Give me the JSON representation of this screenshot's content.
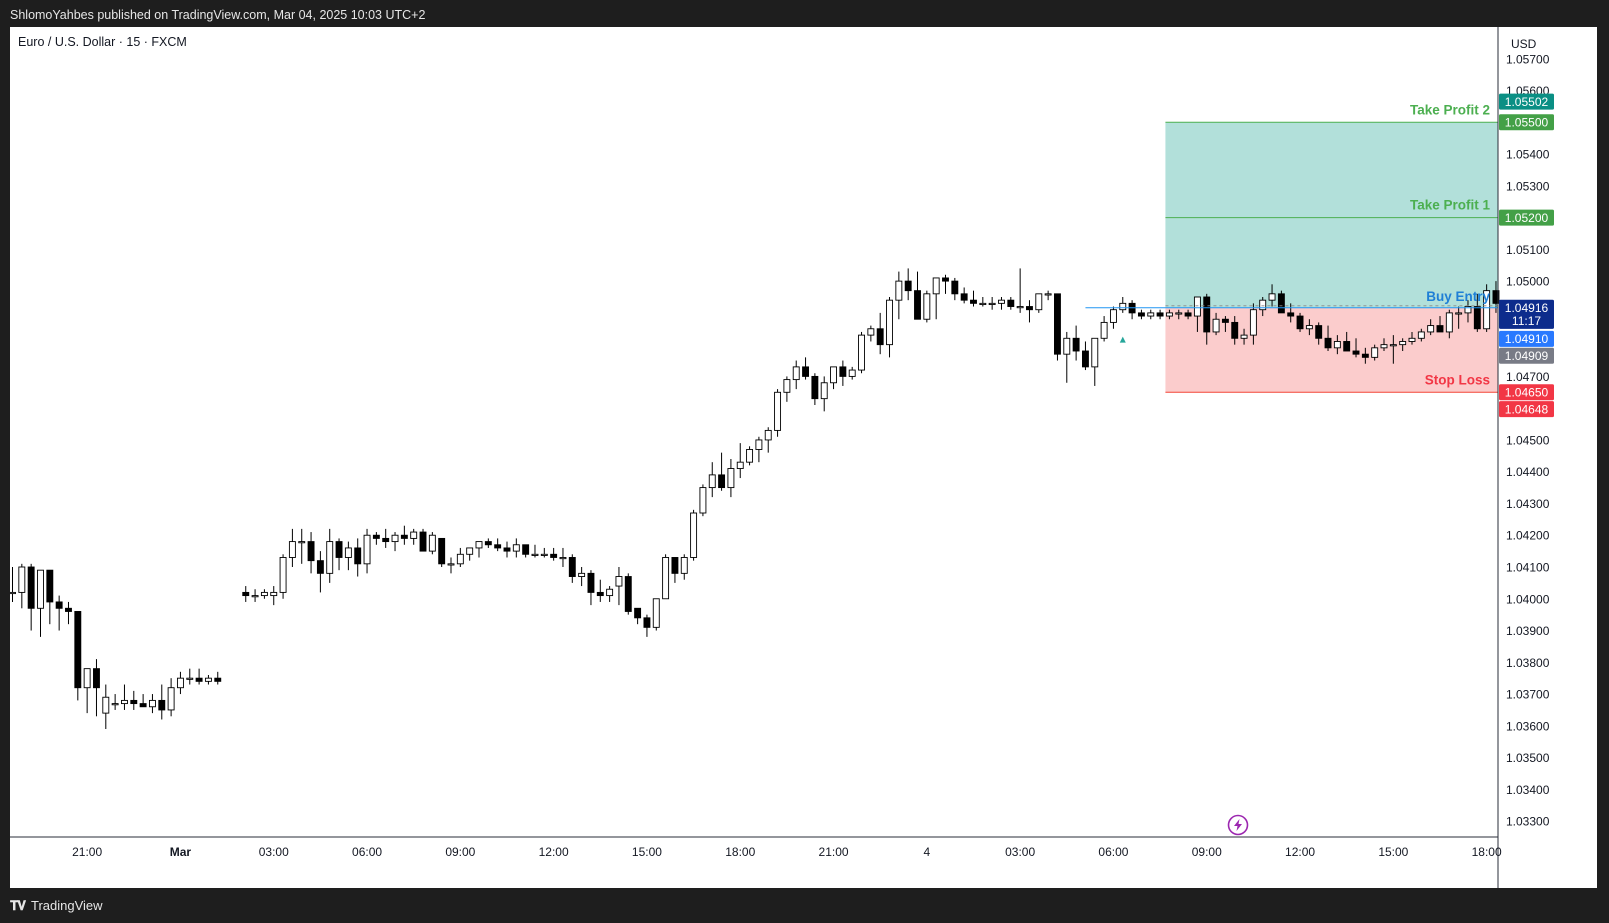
{
  "header": {
    "published_by": "ShlomoYahbes published on TradingView.com, Mar 04, 2025 10:03 UTC+2"
  },
  "footer": {
    "brand": "TradingView",
    "logo_icon": "tradingview-logo-icon"
  },
  "chart_data": {
    "type": "candlestick",
    "symbol_label": "Euro / U.S. Dollar · 15 · FXCM",
    "currency": "USD",
    "ylim": [
      1.0325,
      1.058
    ],
    "y_ticks": [
      "1.05700",
      "1.05600",
      "1.05400",
      "1.05300",
      "1.05100",
      "1.05000",
      "1.04700",
      "1.04500",
      "1.04400",
      "1.04300",
      "1.04200",
      "1.04100",
      "1.04000",
      "1.03900",
      "1.03800",
      "1.03700",
      "1.03600",
      "1.03500",
      "1.03400",
      "1.03300"
    ],
    "x_ticks": [
      {
        "label": "21:00",
        "bar": 8
      },
      {
        "label": "Mar",
        "bar": 18,
        "bold": true
      },
      {
        "label": "03:00",
        "bar": 28
      },
      {
        "label": "06:00",
        "bar": 38
      },
      {
        "label": "09:00",
        "bar": 48
      },
      {
        "label": "12:00",
        "bar": 58
      },
      {
        "label": "15:00",
        "bar": 68
      },
      {
        "label": "18:00",
        "bar": 78
      },
      {
        "label": "21:00",
        "bar": 88
      },
      {
        "label": "4",
        "bar": 98
      },
      {
        "label": "03:00",
        "bar": 108
      },
      {
        "label": "06:00",
        "bar": 118
      },
      {
        "label": "09:00",
        "bar": 128
      },
      {
        "label": "12:00",
        "bar": 138
      },
      {
        "label": "15:00",
        "bar": 148
      },
      {
        "label": "18:00",
        "bar": 158
      }
    ],
    "bar_gap": [
      16,
      18
    ],
    "candles": [
      [
        1.0402,
        1.041,
        1.0399,
        1.0402
      ],
      [
        1.0402,
        1.0411,
        1.0397,
        1.041
      ],
      [
        1.041,
        1.0411,
        1.039,
        1.0397
      ],
      [
        1.0397,
        1.0409,
        1.0388,
        1.0409
      ],
      [
        1.0409,
        1.0409,
        1.0392,
        1.0399
      ],
      [
        1.0399,
        1.0401,
        1.039,
        1.0397
      ],
      [
        1.0397,
        1.0399,
        1.0392,
        1.0396
      ],
      [
        1.0396,
        1.0396,
        1.0368,
        1.0372
      ],
      [
        1.0372,
        1.0377,
        1.0364,
        1.0378
      ],
      [
        1.0378,
        1.0381,
        1.0363,
        1.0372
      ],
      [
        1.0364,
        1.0373,
        1.0359,
        1.0369
      ],
      [
        1.0367,
        1.037,
        1.0365,
        1.0367
      ],
      [
        1.0367,
        1.0373,
        1.0365,
        1.0368
      ],
      [
        1.0368,
        1.0371,
        1.0365,
        1.0367
      ],
      [
        1.0367,
        1.037,
        1.0366,
        1.0366
      ],
      [
        1.0366,
        1.037,
        1.0364,
        1.0368
      ],
      [
        1.0368,
        1.0373,
        1.0362,
        1.0365
      ],
      [
        1.0365,
        1.0375,
        1.0363,
        1.0372
      ],
      [
        1.0372,
        1.0377,
        1.037,
        1.0375
      ],
      [
        1.0375,
        1.0378,
        1.0373,
        1.0375
      ],
      [
        1.0375,
        1.0378,
        1.0373,
        1.0374
      ],
      [
        1.0374,
        1.0376,
        1.0373,
        1.0375
      ],
      [
        1.0375,
        1.0377,
        1.0373,
        1.0374
      ],
      [
        1.0402,
        1.0404,
        1.0399,
        1.0401
      ],
      [
        1.0401,
        1.0403,
        1.0399,
        1.0401
      ],
      [
        1.0401,
        1.0403,
        1.04,
        1.0402
      ],
      [
        1.0401,
        1.0404,
        1.0398,
        1.0402
      ],
      [
        1.0402,
        1.0414,
        1.04,
        1.0413
      ],
      [
        1.0413,
        1.0422,
        1.041,
        1.0418
      ],
      [
        1.0418,
        1.0422,
        1.0411,
        1.0418
      ],
      [
        1.0418,
        1.0421,
        1.0408,
        1.0412
      ],
      [
        1.0412,
        1.0415,
        1.0402,
        1.0408
      ],
      [
        1.0408,
        1.0422,
        1.0405,
        1.0418
      ],
      [
        1.0418,
        1.0419,
        1.0409,
        1.0413
      ],
      [
        1.0413,
        1.0418,
        1.0409,
        1.0416
      ],
      [
        1.0416,
        1.0419,
        1.0407,
        1.0411
      ],
      [
        1.0411,
        1.0422,
        1.0408,
        1.042
      ],
      [
        1.042,
        1.0421,
        1.0417,
        1.0419
      ],
      [
        1.0419,
        1.0422,
        1.0416,
        1.0418
      ],
      [
        1.0418,
        1.0421,
        1.0415,
        1.042
      ],
      [
        1.042,
        1.0423,
        1.0417,
        1.0419
      ],
      [
        1.0419,
        1.0422,
        1.0417,
        1.0421
      ],
      [
        1.0421,
        1.0422,
        1.0415,
        1.0415
      ],
      [
        1.0415,
        1.0421,
        1.0414,
        1.042
      ],
      [
        1.0419,
        1.0419,
        1.041,
        1.0411
      ],
      [
        1.0411,
        1.0413,
        1.0408,
        1.0411
      ],
      [
        1.0411,
        1.0416,
        1.041,
        1.0414
      ],
      [
        1.0414,
        1.0416,
        1.0412,
        1.0416
      ],
      [
        1.0416,
        1.0418,
        1.0413,
        1.0418
      ],
      [
        1.0418,
        1.0419,
        1.0416,
        1.0417
      ],
      [
        1.0417,
        1.0419,
        1.0415,
        1.0416
      ],
      [
        1.0416,
        1.0418,
        1.0413,
        1.0415
      ],
      [
        1.0415,
        1.0419,
        1.0413,
        1.0417
      ],
      [
        1.0417,
        1.0417,
        1.0413,
        1.0414
      ],
      [
        1.0414,
        1.0417,
        1.0413,
        1.0414
      ],
      [
        1.0414,
        1.0416,
        1.0413,
        1.0414
      ],
      [
        1.0414,
        1.0416,
        1.0412,
        1.0413
      ],
      [
        1.0413,
        1.0416,
        1.041,
        1.0413
      ],
      [
        1.0413,
        1.0414,
        1.0405,
        1.0407
      ],
      [
        1.0407,
        1.041,
        1.0404,
        1.0408
      ],
      [
        1.0408,
        1.0409,
        1.0398,
        1.0402
      ],
      [
        1.0402,
        1.0406,
        1.0399,
        1.0401
      ],
      [
        1.0401,
        1.0404,
        1.0399,
        1.0403
      ],
      [
        1.0404,
        1.041,
        1.0398,
        1.0407
      ],
      [
        1.0407,
        1.0408,
        1.0395,
        1.0396
      ],
      [
        1.0397,
        1.0397,
        1.0392,
        1.0394
      ],
      [
        1.0394,
        1.0395,
        1.0388,
        1.0391
      ],
      [
        1.0391,
        1.04,
        1.039,
        1.04
      ],
      [
        1.04,
        1.0414,
        1.04,
        1.0413
      ],
      [
        1.0413,
        1.0413,
        1.0405,
        1.0408
      ],
      [
        1.0408,
        1.0414,
        1.0406,
        1.0413
      ],
      [
        1.0413,
        1.0428,
        1.0412,
        1.0427
      ],
      [
        1.0427,
        1.0436,
        1.0426,
        1.0435
      ],
      [
        1.0435,
        1.0443,
        1.0432,
        1.0439
      ],
      [
        1.0439,
        1.0446,
        1.0434,
        1.0435
      ],
      [
        1.0435,
        1.0444,
        1.0432,
        1.0441
      ],
      [
        1.0441,
        1.0449,
        1.0438,
        1.0443
      ],
      [
        1.0443,
        1.0448,
        1.0442,
        1.0447
      ],
      [
        1.0447,
        1.0451,
        1.0443,
        1.045
      ],
      [
        1.045,
        1.0454,
        1.0446,
        1.0453
      ],
      [
        1.0453,
        1.0466,
        1.0451,
        1.0465
      ],
      [
        1.0465,
        1.047,
        1.0462,
        1.0469
      ],
      [
        1.0469,
        1.0475,
        1.0466,
        1.0473
      ],
      [
        1.0473,
        1.0476,
        1.0469,
        1.047
      ],
      [
        1.047,
        1.0471,
        1.0461,
        1.0463
      ],
      [
        1.0463,
        1.047,
        1.0459,
        1.0468
      ],
      [
        1.0468,
        1.0473,
        1.0466,
        1.0473
      ],
      [
        1.0473,
        1.0475,
        1.0467,
        1.047
      ],
      [
        1.047,
        1.0473,
        1.0469,
        1.0472
      ],
      [
        1.0472,
        1.0484,
        1.0471,
        1.0483
      ],
      [
        1.0483,
        1.0486,
        1.0481,
        1.0485
      ],
      [
        1.0485,
        1.049,
        1.0477,
        1.048
      ],
      [
        1.048,
        1.0495,
        1.0476,
        1.0494
      ],
      [
        1.0494,
        1.0503,
        1.0488,
        1.05
      ],
      [
        1.05,
        1.0504,
        1.0494,
        1.0497
      ],
      [
        1.0497,
        1.0503,
        1.049,
        1.0488
      ],
      [
        1.0488,
        1.0497,
        1.0487,
        1.0496
      ],
      [
        1.0496,
        1.0501,
        1.0488,
        1.0501
      ],
      [
        1.0501,
        1.0502,
        1.0496,
        1.05
      ],
      [
        1.05,
        1.0501,
        1.0494,
        1.0496
      ],
      [
        1.0496,
        1.0498,
        1.0493,
        1.0494
      ],
      [
        1.0494,
        1.0497,
        1.0492,
        1.0493
      ],
      [
        1.0493,
        1.0495,
        1.0492,
        1.0493
      ],
      [
        1.0493,
        1.0495,
        1.0491,
        1.0493
      ],
      [
        1.0493,
        1.0495,
        1.0491,
        1.0494
      ],
      [
        1.0494,
        1.0495,
        1.0491,
        1.0492
      ],
      [
        1.0492,
        1.0504,
        1.049,
        1.0492
      ],
      [
        1.0492,
        1.0494,
        1.0487,
        1.0491
      ],
      [
        1.0491,
        1.0496,
        1.049,
        1.0496
      ],
      [
        1.0496,
        1.0497,
        1.0494,
        1.0496
      ],
      [
        1.0496,
        1.0496,
        1.0475,
        1.0477
      ],
      [
        1.0477,
        1.0484,
        1.0468,
        1.0482
      ],
      [
        1.0482,
        1.0486,
        1.0475,
        1.0478
      ],
      [
        1.0478,
        1.0481,
        1.0472,
        1.0473
      ],
      [
        1.0473,
        1.0482,
        1.0467,
        1.0482
      ],
      [
        1.0482,
        1.0489,
        1.0481,
        1.0487
      ],
      [
        1.0487,
        1.0492,
        1.0485,
        1.0491
      ],
      [
        1.0491,
        1.0495,
        1.049,
        1.0493
      ],
      [
        1.0493,
        1.0494,
        1.0488,
        1.049
      ],
      [
        1.049,
        1.0491,
        1.0488,
        1.0489
      ],
      [
        1.0489,
        1.0491,
        1.0488,
        1.049
      ],
      [
        1.049,
        1.0491,
        1.0488,
        1.0489
      ],
      [
        1.0489,
        1.0491,
        1.0488,
        1.049
      ],
      [
        1.049,
        1.0491,
        1.0488,
        1.049
      ],
      [
        1.049,
        1.0491,
        1.0488,
        1.0489
      ],
      [
        1.0489,
        1.0495,
        1.0484,
        1.0495
      ],
      [
        1.0495,
        1.0496,
        1.048,
        1.0484
      ],
      [
        1.0484,
        1.049,
        1.0483,
        1.0488
      ],
      [
        1.0488,
        1.0489,
        1.0484,
        1.0487
      ],
      [
        1.0487,
        1.0489,
        1.048,
        1.0482
      ],
      [
        1.0482,
        1.0485,
        1.048,
        1.0483
      ],
      [
        1.0483,
        1.0493,
        1.048,
        1.0491
      ],
      [
        1.0491,
        1.0495,
        1.0489,
        1.0494
      ],
      [
        1.0494,
        1.0499,
        1.0492,
        1.0496
      ],
      [
        1.0496,
        1.0497,
        1.049,
        1.049
      ],
      [
        1.049,
        1.0493,
        1.0487,
        1.0489
      ],
      [
        1.0489,
        1.049,
        1.0484,
        1.0485
      ],
      [
        1.0485,
        1.0488,
        1.0483,
        1.0486
      ],
      [
        1.0486,
        1.0487,
        1.048,
        1.0482
      ],
      [
        1.0482,
        1.0486,
        1.0478,
        1.0479
      ],
      [
        1.0479,
        1.0483,
        1.0477,
        1.0481
      ],
      [
        1.0481,
        1.0484,
        1.0478,
        1.0478
      ],
      [
        1.0478,
        1.0482,
        1.0476,
        1.0477
      ],
      [
        1.0477,
        1.0479,
        1.0474,
        1.0476
      ],
      [
        1.0476,
        1.048,
        1.0475,
        1.0479
      ],
      [
        1.0479,
        1.0482,
        1.0478,
        1.048
      ],
      [
        1.048,
        1.0483,
        1.0474,
        1.048
      ],
      [
        1.048,
        1.0482,
        1.0478,
        1.0481
      ],
      [
        1.0481,
        1.0484,
        1.048,
        1.0482
      ],
      [
        1.0482,
        1.0485,
        1.0481,
        1.0484
      ],
      [
        1.0484,
        1.0488,
        1.0483,
        1.0486
      ],
      [
        1.0486,
        1.0489,
        1.0485,
        1.0484
      ],
      [
        1.0484,
        1.0491,
        1.0482,
        1.049
      ],
      [
        1.049,
        1.0492,
        1.0485,
        1.049
      ],
      [
        1.049,
        1.0494,
        1.0487,
        1.0492
      ],
      [
        1.0492,
        1.0496,
        1.0484,
        1.0485
      ],
      [
        1.0485,
        1.0499,
        1.0484,
        1.0497
      ],
      [
        1.0497,
        1.05,
        1.049,
        1.0493
      ],
      [
        1.0493,
        1.0493,
        1.0488,
        1.0491
      ]
    ],
    "signal_marker": {
      "bar": 119,
      "price": 1.0486,
      "icon": "triangle-up-icon",
      "color": "#26a69a"
    },
    "position": {
      "start_bar": 124,
      "entry": 1.04916,
      "tp1": 1.052,
      "tp2": 1.055,
      "stop": 1.0465,
      "entry_label": "Buy Entry",
      "tp1_label": "Take Profit 1",
      "tp2_label": "Take Profit 2",
      "stop_label": "Stop Loss",
      "profit_zone_color": "#b2e0da",
      "loss_zone_color": "#fbcccc",
      "tp_color": "#4caf50",
      "entry_color": "#2196f3",
      "stop_color": "#f44336"
    },
    "price_tags": [
      {
        "label": "1.05502",
        "price": 1.05565,
        "bg": "#0a8f84"
      },
      {
        "label": "1.05500",
        "price": 1.055,
        "bg": "#43a047"
      },
      {
        "label": "1.05200",
        "price": 1.052,
        "bg": "#43a047"
      },
      {
        "label": "1.04916",
        "price": 1.04916,
        "bg": "#0d2c8c"
      },
      {
        "label": "11:17",
        "price": 1.04875,
        "bg": "#0d2c8c"
      },
      {
        "label": "1.04910",
        "price": 1.04818,
        "bg": "#2979ff"
      },
      {
        "label": "1.04909",
        "price": 1.04765,
        "bg": "#787b86"
      },
      {
        "label": "1.04650",
        "price": 1.0465,
        "bg": "#f23645"
      },
      {
        "label": "1.04648",
        "price": 1.04597,
        "bg": "#f23645"
      }
    ],
    "lightning_icon": "lightning-icon",
    "colors": {
      "up_candle": "#ffffff",
      "down_candle": "#000000",
      "wick": "#000000",
      "grid": "#ffffff"
    }
  }
}
